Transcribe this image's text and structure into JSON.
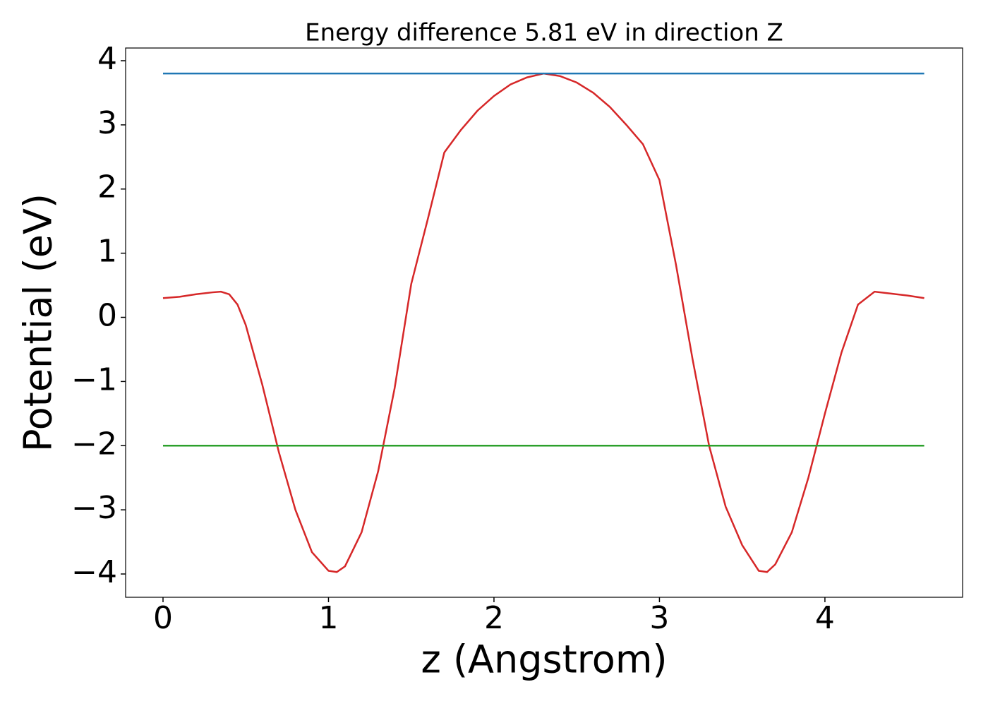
{
  "chart_data": {
    "type": "line",
    "title": "Energy difference 5.81 eV in direction Z",
    "xlabel": "z (Angstrom)",
    "ylabel": "Potential (eV)",
    "xlim": [
      -0.226,
      4.832
    ],
    "ylim": [
      -4.363,
      4.198
    ],
    "xticks": [
      0,
      1,
      2,
      3,
      4
    ],
    "yticks": [
      {
        "value": -4,
        "label": "−4"
      },
      {
        "value": -3,
        "label": "−3"
      },
      {
        "value": -2,
        "label": "−2"
      },
      {
        "value": -1,
        "label": "−1"
      },
      0,
      1,
      2,
      3,
      4
    ],
    "grid": false,
    "series": [
      {
        "color": "#d62728",
        "x": [
          0,
          0.1,
          0.2,
          0.3,
          0.35,
          0.4,
          0.45,
          0.5,
          0.6,
          0.7,
          0.8,
          0.9,
          1.0,
          1.05,
          1.1,
          1.2,
          1.3,
          1.4,
          1.5,
          1.6,
          1.7,
          1.8,
          1.9,
          2.0,
          2.1,
          2.2,
          2.3,
          2.4,
          2.5,
          2.6,
          2.7,
          2.8,
          2.9,
          3.0,
          3.1,
          3.2,
          3.3,
          3.4,
          3.5,
          3.6,
          3.65,
          3.7,
          3.8,
          3.9,
          4.0,
          4.1,
          4.2,
          4.3,
          4.4,
          4.5,
          4.6
        ],
        "values": [
          0.3,
          0.32,
          0.36,
          0.39,
          0.4,
          0.36,
          0.2,
          -0.12,
          -1.05,
          -2.1,
          -3.0,
          -3.66,
          -3.95,
          -3.97,
          -3.88,
          -3.35,
          -2.4,
          -1.1,
          0.52,
          1.53,
          2.57,
          2.92,
          3.22,
          3.45,
          3.63,
          3.74,
          3.8,
          3.76,
          3.66,
          3.5,
          3.28,
          3.0,
          2.7,
          2.14,
          0.82,
          -0.65,
          -2.0,
          -2.95,
          -3.55,
          -3.95,
          -3.97,
          -3.85,
          -3.35,
          -2.5,
          -1.5,
          -0.55,
          0.2,
          0.4,
          0.37,
          0.34,
          0.3
        ]
      },
      {
        "color": "#1f77b4",
        "x": [
          0,
          4.6
        ],
        "values": [
          3.8,
          3.8
        ]
      },
      {
        "color": "#2ca02c",
        "x": [
          0,
          4.6
        ],
        "values": [
          -2.0,
          -2.0
        ]
      }
    ]
  }
}
